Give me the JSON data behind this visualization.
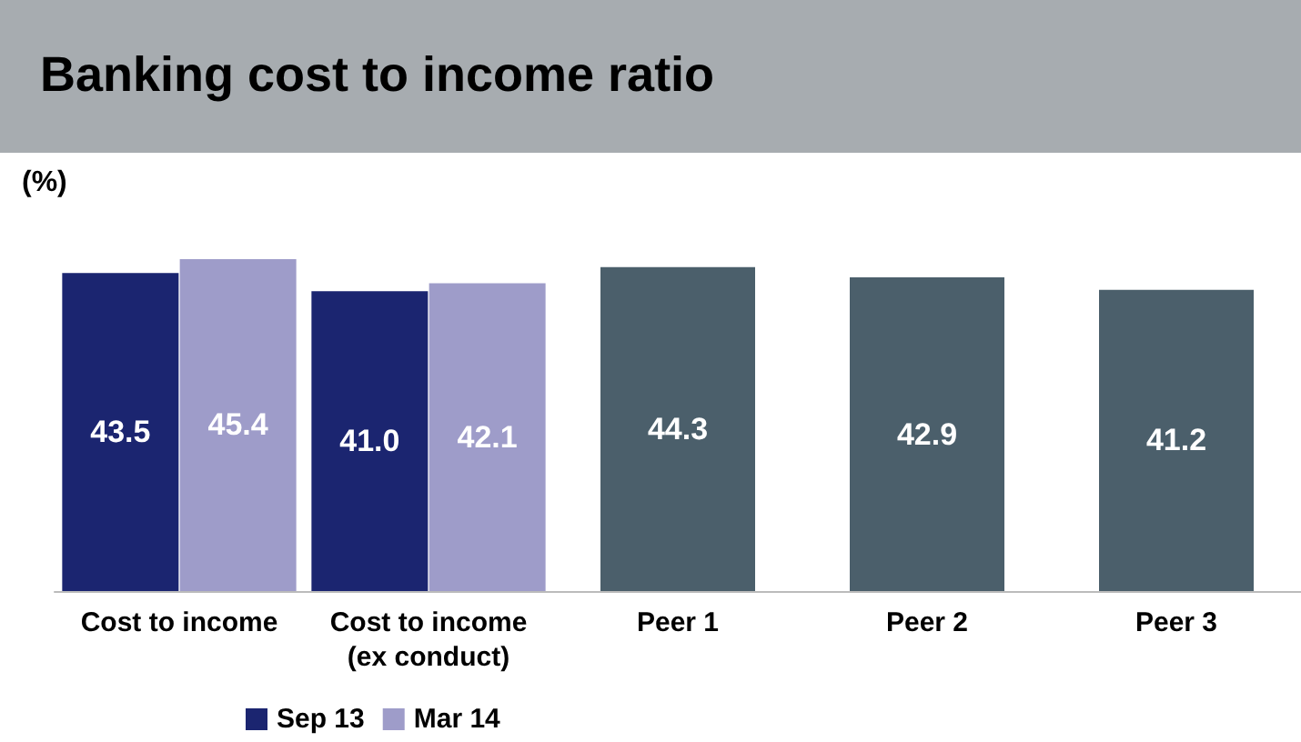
{
  "chart_data": {
    "type": "bar",
    "title": "Banking cost to income ratio",
    "ylabel": "(%)",
    "categories": [
      "Cost to income",
      "Cost to income\n(ex conduct)",
      "Peer 1",
      "Peer 2",
      "Peer 3"
    ],
    "series": [
      {
        "name": "Sep 13",
        "color": "#1b2570",
        "values": [
          43.5,
          41.0,
          null,
          null,
          null
        ],
        "value_labels": [
          "43.5",
          "41.0",
          null,
          null,
          null
        ]
      },
      {
        "name": "Mar 14",
        "color": "#9e9cc9",
        "values": [
          45.4,
          42.1,
          null,
          null,
          null
        ],
        "value_labels": [
          "45.4",
          "42.1",
          null,
          null,
          null
        ]
      },
      {
        "color": "#4b5f6b",
        "values": [
          null,
          null,
          44.3,
          42.9,
          41.2
        ],
        "value_labels": [
          null,
          null,
          "44.3",
          "42.9",
          "41.2"
        ]
      }
    ],
    "grid": false,
    "legend": "bottom left"
  }
}
